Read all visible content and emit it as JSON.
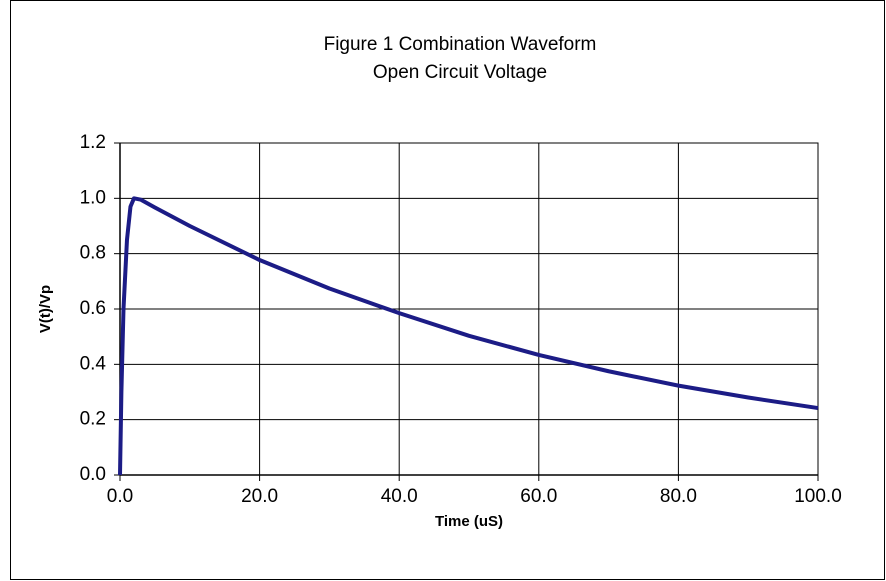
{
  "chart_data": {
    "type": "line",
    "title": "Figure 1 Combination Waveform",
    "subtitle": "Open Circuit Voltage",
    "x_label": "Time (uS)",
    "y_label": "V(t)/Vp",
    "x": [
      0,
      0.2,
      0.5,
      1.0,
      1.5,
      2.0,
      3.0,
      5.0,
      10.0,
      20.0,
      30.0,
      40.0,
      50.0,
      60.0,
      70.0,
      80.0,
      90.0,
      100.0
    ],
    "series": [
      {
        "name": "V(t)/Vp",
        "color": "#1c1c86",
        "values": [
          0,
          0.3,
          0.6,
          0.85,
          0.97,
          1.0,
          0.995,
          0.967,
          0.9,
          0.777,
          0.674,
          0.585,
          0.503,
          0.434,
          0.375,
          0.323,
          0.28,
          0.242
        ]
      }
    ],
    "xlim": [
      0,
      100
    ],
    "ylim": [
      0,
      1.2
    ],
    "xticks": [
      {
        "value": 0,
        "label": "0.0"
      },
      {
        "value": 20,
        "label": "20.0"
      },
      {
        "value": 40,
        "label": "40.0"
      },
      {
        "value": 60,
        "label": "60.0"
      },
      {
        "value": 80,
        "label": "80.0"
      },
      {
        "value": 100,
        "label": "100.0"
      }
    ],
    "yticks": [
      {
        "value": 0,
        "label": "0.0"
      },
      {
        "value": 0.2,
        "label": "0.2"
      },
      {
        "value": 0.4,
        "label": "0.4"
      },
      {
        "value": 0.6,
        "label": "0.6"
      },
      {
        "value": 0.8,
        "label": "0.8"
      },
      {
        "value": 1.0,
        "label": "1.0"
      },
      {
        "value": 1.2,
        "label": "1.2"
      }
    ],
    "grid": true
  }
}
